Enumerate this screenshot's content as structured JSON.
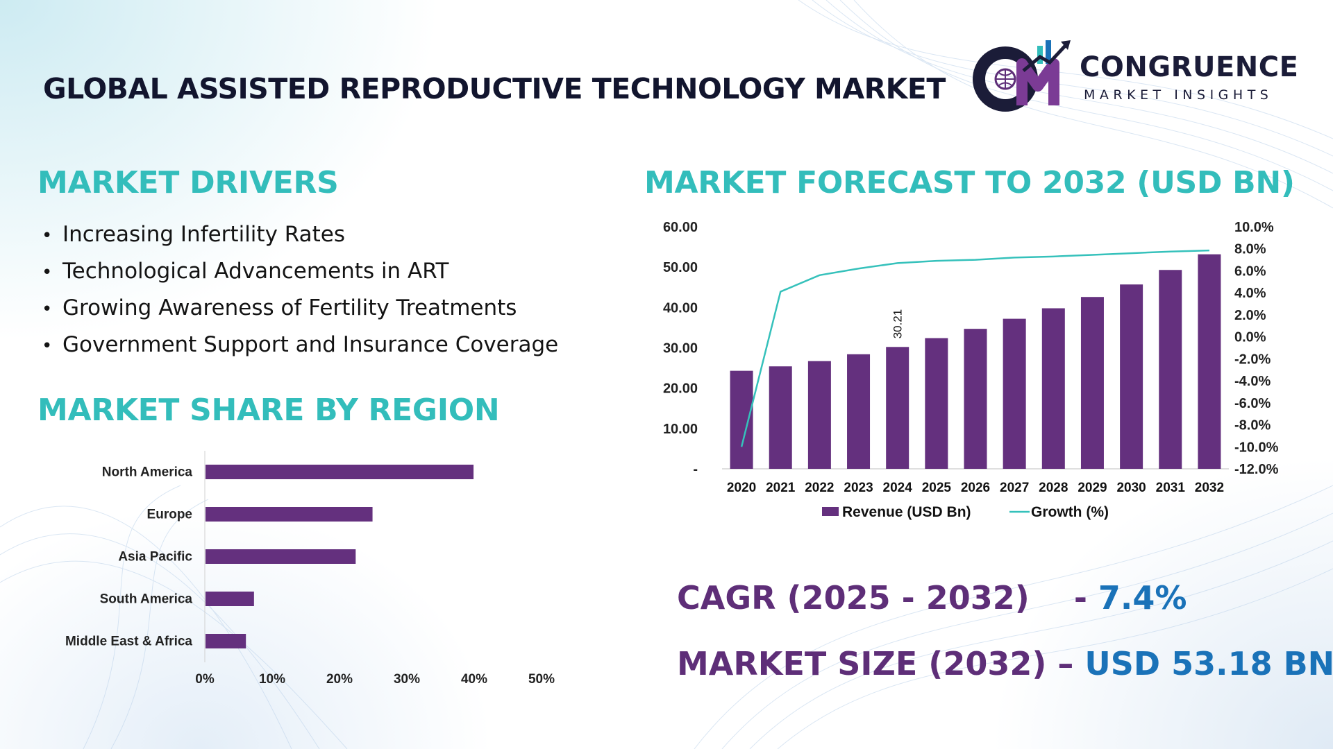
{
  "title": "GLOBAL ASSISTED REPRODUCTIVE TECHNOLOGY MARKET",
  "logo": {
    "line1": "CONGRUENCE",
    "line2": "MARKET INSIGHTS"
  },
  "drivers": {
    "heading": "MARKET DRIVERS",
    "items": [
      "Increasing Infertility Rates",
      "Technological Advancements in ART",
      "Growing Awareness of Fertility Treatments",
      "Government Support and Insurance Coverage"
    ]
  },
  "region": {
    "heading": "MARKET SHARE BY REGION"
  },
  "forecast": {
    "heading": "MARKET FORECAST TO 2032 (USD BN)"
  },
  "stats": {
    "cagr_label": "CAGR (2025 - 2032)",
    "cagr_dash": "- ",
    "cagr_value": "7.4%",
    "size_label": "MARKET SIZE (2032)",
    "size_dash": " – ",
    "size_value": "USD 53.18 BN"
  },
  "colors": {
    "bar": "#64307e",
    "line": "#35c1bb",
    "teal_heading": "#33bdbb",
    "stat_label": "#5e2e78",
    "stat_value": "#1a72b8"
  },
  "chart_data": [
    {
      "type": "bar",
      "orientation": "horizontal",
      "categories": [
        "North America",
        "Europe",
        "Asia Pacific",
        "South America",
        "Middle East & Africa"
      ],
      "values": [
        39.8,
        24.8,
        22.3,
        7.2,
        6.0
      ],
      "xlim": [
        0,
        50
      ],
      "xticks": [
        "0%",
        "10%",
        "20%",
        "30%",
        "40%",
        "50%"
      ],
      "grid": false
    },
    {
      "type": "bar",
      "categories": [
        "2020",
        "2021",
        "2022",
        "2023",
        "2024",
        "2025",
        "2026",
        "2027",
        "2028",
        "2029",
        "2030",
        "2031",
        "2032"
      ],
      "series": [
        {
          "name": "Revenue (USD Bn)",
          "type": "bar",
          "axis": "left",
          "values": [
            24.3,
            25.4,
            26.7,
            28.4,
            30.21,
            32.4,
            34.7,
            37.2,
            39.8,
            42.6,
            45.7,
            49.3,
            53.18
          ]
        },
        {
          "name": "Growth (%)",
          "type": "line",
          "axis": "right",
          "values": [
            -10.0,
            4.1,
            5.6,
            6.2,
            6.7,
            6.9,
            7.0,
            7.2,
            7.3,
            7.45,
            7.6,
            7.75,
            7.85
          ]
        }
      ],
      "data_labels": [
        {
          "index": 4,
          "text": "30.21"
        }
      ],
      "ylim_left": [
        0,
        60
      ],
      "yticks_left": [
        "-",
        "10.00",
        "20.00",
        "30.00",
        "40.00",
        "50.00",
        "60.00"
      ],
      "ylim_right": [
        -12,
        10
      ],
      "yticks_right": [
        "-12.0%",
        "-10.0%",
        "-8.0%",
        "-6.0%",
        "-4.0%",
        "-2.0%",
        "0.0%",
        "2.0%",
        "4.0%",
        "6.0%",
        "8.0%",
        "10.0%"
      ],
      "legend": "bottom",
      "grid": false
    }
  ]
}
